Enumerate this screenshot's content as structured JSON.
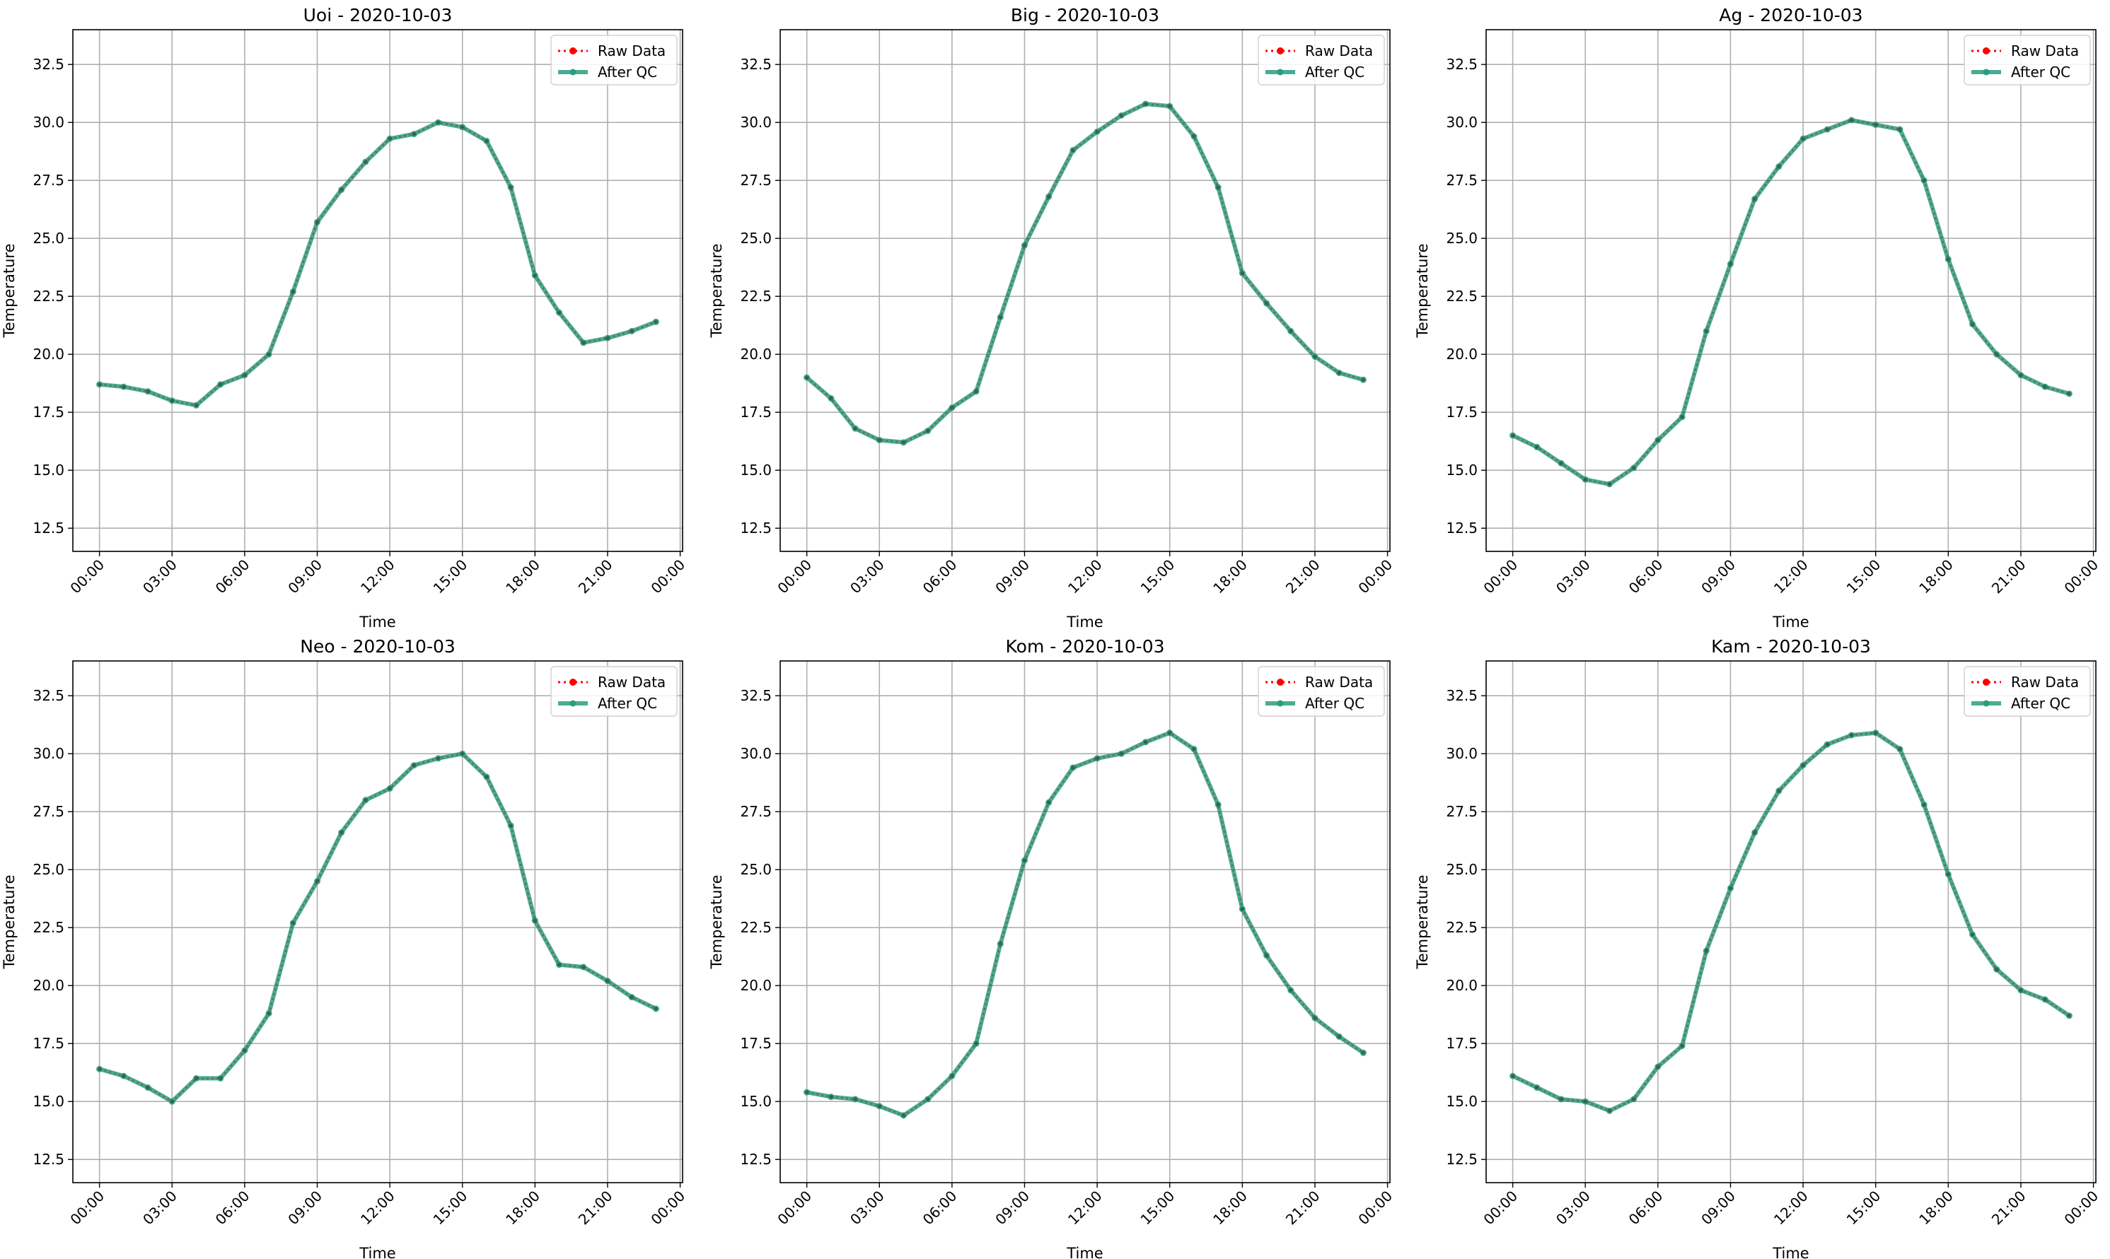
{
  "chart_data": [
    {
      "type": "line",
      "title": "Uoi - 2020-10-03",
      "xlabel": "Time",
      "ylabel": "Temperature",
      "x": [
        "00:00",
        "01:00",
        "02:00",
        "03:00",
        "04:00",
        "05:00",
        "06:00",
        "07:00",
        "08:00",
        "09:00",
        "10:00",
        "11:00",
        "12:00",
        "13:00",
        "14:00",
        "15:00",
        "16:00",
        "17:00",
        "18:00",
        "19:00",
        "20:00",
        "21:00",
        "22:00",
        "23:00"
      ],
      "xticks": [
        "00:00",
        "03:00",
        "06:00",
        "09:00",
        "12:00",
        "15:00",
        "18:00",
        "21:00",
        "00:00"
      ],
      "yticks": [
        "12.5",
        "15.0",
        "17.5",
        "20.0",
        "22.5",
        "25.0",
        "27.5",
        "30.0",
        "32.5"
      ],
      "ylim": [
        11.5,
        34
      ],
      "grid": true,
      "legend": "top-right",
      "series": [
        {
          "name": "Raw Data",
          "color": "#ff0000",
          "values": [
            18.7,
            18.6,
            18.4,
            18.0,
            17.8,
            18.7,
            19.1,
            20.0,
            22.7,
            25.7,
            27.1,
            28.3,
            29.3,
            29.5,
            30.0,
            29.8,
            29.2,
            27.2,
            23.4,
            21.8,
            20.5,
            20.7,
            21.0,
            21.4
          ]
        },
        {
          "name": "After QC",
          "color": "#2a9d7e",
          "values": [
            18.7,
            18.6,
            18.4,
            18.0,
            17.8,
            18.7,
            19.1,
            20.0,
            22.7,
            25.7,
            27.1,
            28.3,
            29.3,
            29.5,
            30.0,
            29.8,
            29.2,
            27.2,
            23.4,
            21.8,
            20.5,
            20.7,
            21.0,
            21.4
          ]
        }
      ]
    },
    {
      "type": "line",
      "title": "Big - 2020-10-03",
      "xlabel": "Time",
      "ylabel": "Temperature",
      "x": [
        "00:00",
        "01:00",
        "02:00",
        "03:00",
        "04:00",
        "05:00",
        "06:00",
        "07:00",
        "08:00",
        "09:00",
        "10:00",
        "11:00",
        "12:00",
        "13:00",
        "14:00",
        "15:00",
        "16:00",
        "17:00",
        "18:00",
        "19:00",
        "20:00",
        "21:00",
        "22:00",
        "23:00"
      ],
      "xticks": [
        "00:00",
        "03:00",
        "06:00",
        "09:00",
        "12:00",
        "15:00",
        "18:00",
        "21:00",
        "00:00"
      ],
      "yticks": [
        "12.5",
        "15.0",
        "17.5",
        "20.0",
        "22.5",
        "25.0",
        "27.5",
        "30.0",
        "32.5"
      ],
      "ylim": [
        11.5,
        34
      ],
      "grid": true,
      "legend": "top-right",
      "series": [
        {
          "name": "Raw Data",
          "color": "#ff0000",
          "values": [
            19.0,
            18.1,
            16.8,
            16.3,
            16.2,
            16.7,
            17.7,
            18.4,
            21.6,
            24.7,
            26.8,
            28.8,
            29.6,
            30.3,
            30.8,
            30.7,
            29.4,
            27.2,
            23.5,
            22.2,
            21.0,
            19.9,
            19.2,
            18.9
          ]
        },
        {
          "name": "After QC",
          "color": "#2a9d7e",
          "values": [
            19.0,
            18.1,
            16.8,
            16.3,
            16.2,
            16.7,
            17.7,
            18.4,
            21.6,
            24.7,
            26.8,
            28.8,
            29.6,
            30.3,
            30.8,
            30.7,
            29.4,
            27.2,
            23.5,
            22.2,
            21.0,
            19.9,
            19.2,
            18.9
          ]
        }
      ]
    },
    {
      "type": "line",
      "title": "Ag - 2020-10-03",
      "xlabel": "Time",
      "ylabel": "Temperature",
      "x": [
        "00:00",
        "01:00",
        "02:00",
        "03:00",
        "04:00",
        "05:00",
        "06:00",
        "07:00",
        "08:00",
        "09:00",
        "10:00",
        "11:00",
        "12:00",
        "13:00",
        "14:00",
        "15:00",
        "16:00",
        "17:00",
        "18:00",
        "19:00",
        "20:00",
        "21:00",
        "22:00",
        "23:00"
      ],
      "xticks": [
        "00:00",
        "03:00",
        "06:00",
        "09:00",
        "12:00",
        "15:00",
        "18:00",
        "21:00",
        "00:00"
      ],
      "yticks": [
        "12.5",
        "15.0",
        "17.5",
        "20.0",
        "22.5",
        "25.0",
        "27.5",
        "30.0",
        "32.5"
      ],
      "ylim": [
        11.5,
        34
      ],
      "grid": true,
      "legend": "top-right",
      "series": [
        {
          "name": "Raw Data",
          "color": "#ff0000",
          "values": [
            16.5,
            16.0,
            15.3,
            14.6,
            14.4,
            15.1,
            16.3,
            17.3,
            21.0,
            23.9,
            26.7,
            28.1,
            29.3,
            29.7,
            30.1,
            29.9,
            29.7,
            27.5,
            24.1,
            21.3,
            20.0,
            19.1,
            18.6,
            18.3
          ]
        },
        {
          "name": "After QC",
          "color": "#2a9d7e",
          "values": [
            16.5,
            16.0,
            15.3,
            14.6,
            14.4,
            15.1,
            16.3,
            17.3,
            21.0,
            23.9,
            26.7,
            28.1,
            29.3,
            29.7,
            30.1,
            29.9,
            29.7,
            27.5,
            24.1,
            21.3,
            20.0,
            19.1,
            18.6,
            18.3
          ]
        }
      ]
    },
    {
      "type": "line",
      "title": "Neo - 2020-10-03",
      "xlabel": "Time",
      "ylabel": "Temperature",
      "x": [
        "00:00",
        "01:00",
        "02:00",
        "03:00",
        "04:00",
        "05:00",
        "06:00",
        "07:00",
        "08:00",
        "09:00",
        "10:00",
        "11:00",
        "12:00",
        "13:00",
        "14:00",
        "15:00",
        "16:00",
        "17:00",
        "18:00",
        "19:00",
        "20:00",
        "21:00",
        "22:00",
        "23:00"
      ],
      "xticks": [
        "00:00",
        "03:00",
        "06:00",
        "09:00",
        "12:00",
        "15:00",
        "18:00",
        "21:00",
        "00:00"
      ],
      "yticks": [
        "12.5",
        "15.0",
        "17.5",
        "20.0",
        "22.5",
        "25.0",
        "27.5",
        "30.0",
        "32.5"
      ],
      "ylim": [
        11.5,
        34
      ],
      "grid": true,
      "legend": "top-right",
      "series": [
        {
          "name": "Raw Data",
          "color": "#ff0000",
          "values": [
            16.4,
            16.1,
            15.6,
            15.0,
            16.0,
            16.0,
            17.2,
            18.8,
            22.7,
            24.5,
            26.6,
            28.0,
            28.5,
            29.5,
            29.8,
            30.0,
            29.0,
            26.9,
            22.8,
            20.9,
            20.8,
            20.2,
            19.5,
            19.0
          ]
        },
        {
          "name": "After QC",
          "color": "#2a9d7e",
          "values": [
            16.4,
            16.1,
            15.6,
            15.0,
            16.0,
            16.0,
            17.2,
            18.8,
            22.7,
            24.5,
            26.6,
            28.0,
            28.5,
            29.5,
            29.8,
            30.0,
            29.0,
            26.9,
            22.8,
            20.9,
            20.8,
            20.2,
            19.5,
            19.0
          ]
        }
      ]
    },
    {
      "type": "line",
      "title": "Kom - 2020-10-03",
      "xlabel": "Time",
      "ylabel": "Temperature",
      "x": [
        "00:00",
        "01:00",
        "02:00",
        "03:00",
        "04:00",
        "05:00",
        "06:00",
        "07:00",
        "08:00",
        "09:00",
        "10:00",
        "11:00",
        "12:00",
        "13:00",
        "14:00",
        "15:00",
        "16:00",
        "17:00",
        "18:00",
        "19:00",
        "20:00",
        "21:00",
        "22:00",
        "23:00"
      ],
      "xticks": [
        "00:00",
        "03:00",
        "06:00",
        "09:00",
        "12:00",
        "15:00",
        "18:00",
        "21:00",
        "00:00"
      ],
      "yticks": [
        "12.5",
        "15.0",
        "17.5",
        "20.0",
        "22.5",
        "25.0",
        "27.5",
        "30.0",
        "32.5"
      ],
      "ylim": [
        11.5,
        34
      ],
      "grid": true,
      "legend": "top-right",
      "series": [
        {
          "name": "Raw Data",
          "color": "#ff0000",
          "values": [
            15.4,
            15.2,
            15.1,
            14.8,
            14.4,
            15.1,
            16.1,
            17.5,
            21.8,
            25.4,
            27.9,
            29.4,
            29.8,
            30.0,
            30.5,
            30.9,
            30.2,
            27.8,
            23.3,
            21.3,
            19.8,
            18.6,
            17.8,
            17.1
          ]
        },
        {
          "name": "After QC",
          "color": "#2a9d7e",
          "values": [
            15.4,
            15.2,
            15.1,
            14.8,
            14.4,
            15.1,
            16.1,
            17.5,
            21.8,
            25.4,
            27.9,
            29.4,
            29.8,
            30.0,
            30.5,
            30.9,
            30.2,
            27.8,
            23.3,
            21.3,
            19.8,
            18.6,
            17.8,
            17.1
          ]
        }
      ]
    },
    {
      "type": "line",
      "title": "Kam - 2020-10-03",
      "xlabel": "Time",
      "ylabel": "Temperature",
      "x": [
        "00:00",
        "01:00",
        "02:00",
        "03:00",
        "04:00",
        "05:00",
        "06:00",
        "07:00",
        "08:00",
        "09:00",
        "10:00",
        "11:00",
        "12:00",
        "13:00",
        "14:00",
        "15:00",
        "16:00",
        "17:00",
        "18:00",
        "19:00",
        "20:00",
        "21:00",
        "22:00",
        "23:00"
      ],
      "xticks": [
        "00:00",
        "03:00",
        "06:00",
        "09:00",
        "12:00",
        "15:00",
        "18:00",
        "21:00",
        "00:00"
      ],
      "yticks": [
        "12.5",
        "15.0",
        "17.5",
        "20.0",
        "22.5",
        "25.0",
        "27.5",
        "30.0",
        "32.5"
      ],
      "ylim": [
        11.5,
        34
      ],
      "grid": true,
      "legend": "top-right",
      "series": [
        {
          "name": "Raw Data",
          "color": "#ff0000",
          "values": [
            16.1,
            15.6,
            15.1,
            15.0,
            14.6,
            15.1,
            16.5,
            17.4,
            21.5,
            24.2,
            26.6,
            28.4,
            29.5,
            30.4,
            30.8,
            30.9,
            30.2,
            27.8,
            24.8,
            22.2,
            20.7,
            19.8,
            19.4,
            18.7
          ]
        },
        {
          "name": "After QC",
          "color": "#2a9d7e",
          "values": [
            16.1,
            15.6,
            15.1,
            15.0,
            14.6,
            15.1,
            16.5,
            17.4,
            21.5,
            24.2,
            26.6,
            28.4,
            29.5,
            30.4,
            30.8,
            30.9,
            30.2,
            27.8,
            24.8,
            22.2,
            20.7,
            19.8,
            19.4,
            18.7
          ]
        }
      ]
    }
  ]
}
